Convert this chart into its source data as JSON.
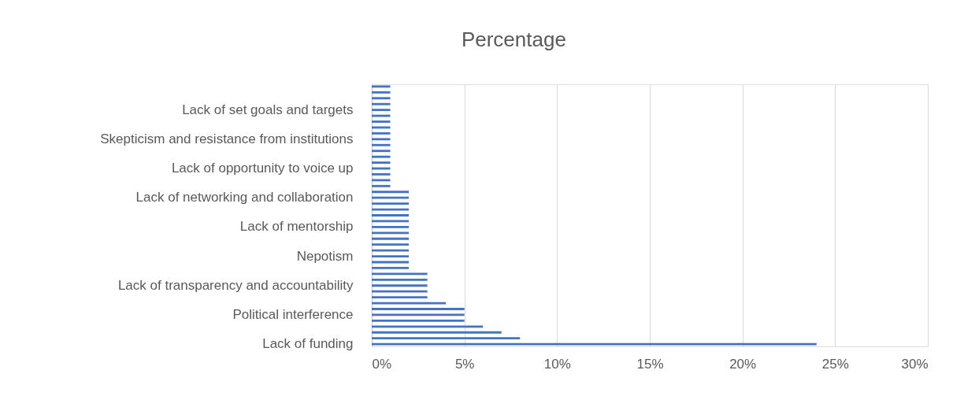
{
  "chart_data": {
    "type": "bar",
    "orientation": "horizontal",
    "title": "Percentage",
    "categories": [
      null,
      null,
      null,
      null,
      "Lack of set goals and targets",
      null,
      null,
      null,
      null,
      "Skepticism and resistance from institutions",
      null,
      null,
      null,
      null,
      "Lack of opportunity to voice up",
      null,
      null,
      null,
      null,
      "Lack of networking and collaboration",
      null,
      null,
      null,
      null,
      "Lack of mentorship",
      null,
      null,
      null,
      null,
      "Nepotism",
      null,
      null,
      null,
      null,
      "Lack of transparency and accountability",
      null,
      null,
      null,
      null,
      "Political interference",
      null,
      null,
      null,
      null,
      "Lack of funding"
    ],
    "values": [
      1,
      1,
      1,
      1,
      1,
      1,
      1,
      1,
      1,
      1,
      1,
      1,
      1,
      1,
      1,
      1,
      1,
      1,
      2,
      2,
      2,
      2,
      2,
      2,
      2,
      2,
      2,
      2,
      2,
      2,
      2,
      2,
      3,
      3,
      3,
      3,
      3,
      4,
      5,
      5,
      5,
      6,
      7,
      8,
      24
    ],
    "color": "#4472c4",
    "xlim": [
      0,
      30
    ],
    "xticks": [
      {
        "value": 0,
        "label": "0%"
      },
      {
        "value": 5,
        "label": "5%"
      },
      {
        "value": 10,
        "label": "10%"
      },
      {
        "value": 15,
        "label": "15%"
      },
      {
        "value": 20,
        "label": "20%"
      },
      {
        "value": 25,
        "label": "25%"
      },
      {
        "value": 30,
        "label": "30%"
      }
    ],
    "grid": "x"
  }
}
